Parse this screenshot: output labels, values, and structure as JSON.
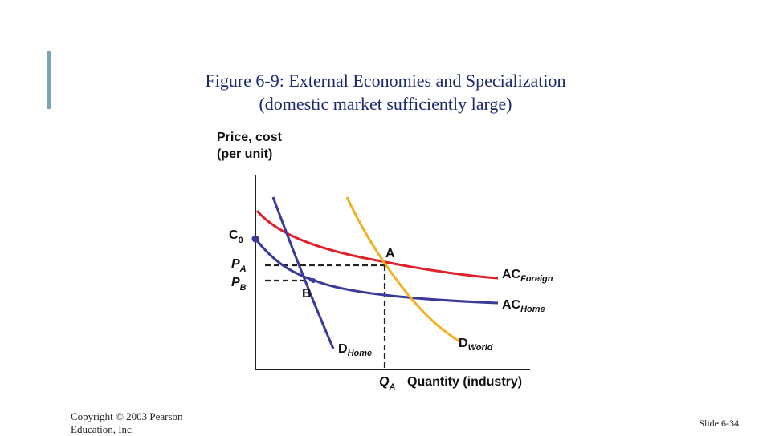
{
  "title": {
    "figure_number": "Figure 6-9",
    "main": ": External Economies and Specialization",
    "sub": "(domestic market sufficiently large)"
  },
  "axes": {
    "y_label_line1": "Price, cost",
    "y_label_line2": "(per unit)",
    "x_label": "Quantity (industry)"
  },
  "points": {
    "c0": "C",
    "c0_sub": "0",
    "pa": "P",
    "pa_sub": "A",
    "pb": "P",
    "pb_sub": "B",
    "a": "A",
    "b": "B",
    "qa": "Q",
    "qa_sub": "A"
  },
  "curves": {
    "ac_foreign": "AC",
    "ac_foreign_sub": "Foreign",
    "ac_home": "AC",
    "ac_home_sub": "Home",
    "d_home": "D",
    "d_home_sub": "Home",
    "d_world": "D",
    "d_world_sub": "World"
  },
  "colors": {
    "ac_foreign": "#e0202a",
    "ac_home": "#3a3a9a",
    "d_world": "#f0b020",
    "d_home": "#3a3a9a",
    "title": "#1a2a6c",
    "accent_bar": "#7aa6b8"
  },
  "footer": {
    "copyright": "Copyright © 2003 Pearson Education, Inc.",
    "slide": "Slide 6-34"
  }
}
